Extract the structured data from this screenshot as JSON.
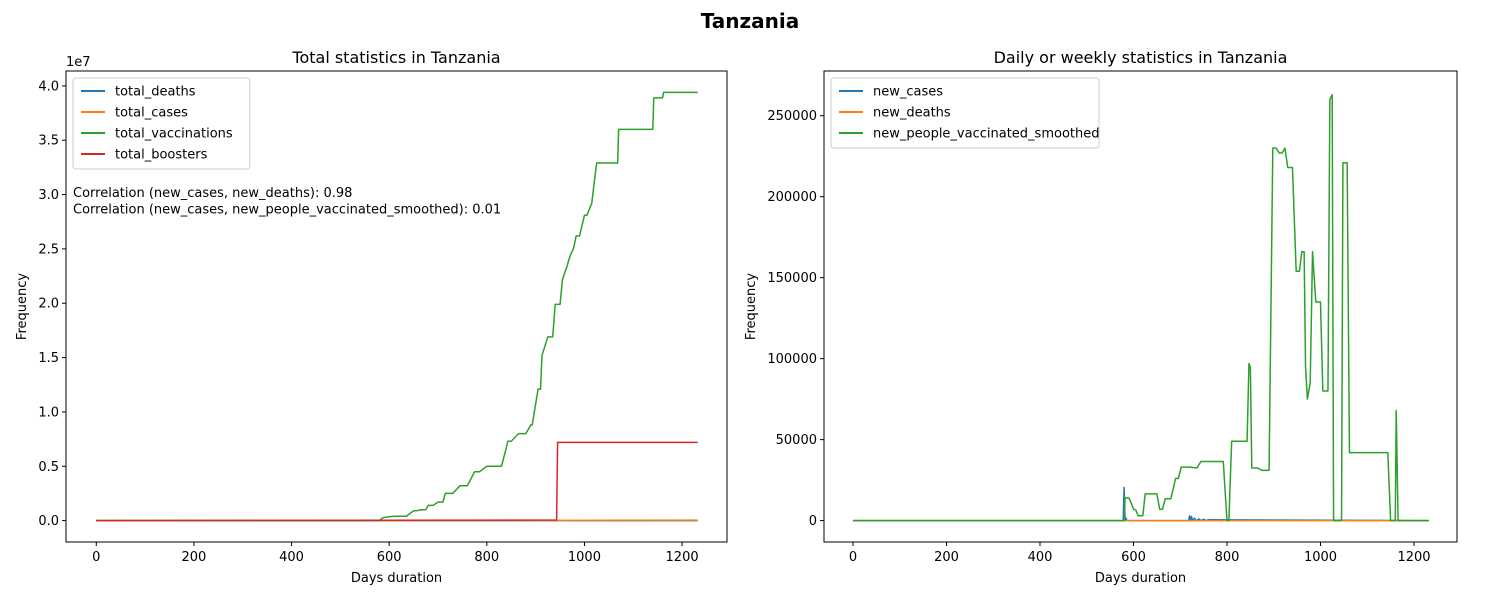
{
  "figure": {
    "title": "Tanzania"
  },
  "chart_data": [
    {
      "type": "line",
      "title": "Total statistics in Tanzania",
      "xlabel": "Days duration",
      "ylabel": "Frequency",
      "y_scale_label": "1e7",
      "xlim": [
        -62,
        1292
      ],
      "ylim": [
        -1970000,
        41370000
      ],
      "xticks": [
        0,
        200,
        400,
        600,
        800,
        1000,
        1200
      ],
      "xtick_labels": [
        "0",
        "200",
        "400",
        "600",
        "800",
        "1000",
        "1200"
      ],
      "yticks": [
        0,
        5000000,
        10000000,
        15000000,
        20000000,
        25000000,
        30000000,
        35000000,
        40000000
      ],
      "ytick_labels": [
        "0.0",
        "0.5",
        "1.0",
        "1.5",
        "2.0",
        "2.5",
        "3.0",
        "3.5",
        "4.0"
      ],
      "legend_position": "top-left",
      "annotations": [
        "Correlation (new_cases, new_deaths): 0.98",
        "Correlation (new_cases, new_people_vaccinated_smoothed): 0.01"
      ],
      "series": [
        {
          "name": "total_deaths",
          "color": "#1f77b4",
          "x": [
            0,
            580,
            1232
          ],
          "y": [
            0,
            21,
            846
          ]
        },
        {
          "name": "total_cases",
          "color": "#ff7f0e",
          "x": [
            0,
            580,
            720,
            1232
          ],
          "y": [
            0,
            509,
            5000,
            43000
          ]
        },
        {
          "name": "total_vaccinations",
          "color": "#2ca02c",
          "x": [
            0,
            580,
            585,
            590,
            600,
            610,
            620,
            635,
            650,
            655,
            665,
            675,
            680,
            690,
            700,
            710,
            715,
            730,
            745,
            750,
            760,
            775,
            785,
            800,
            805,
            830,
            840,
            843,
            850,
            865,
            880,
            890,
            893,
            905,
            910,
            913,
            925,
            935,
            940,
            950,
            955,
            965,
            968,
            972,
            978,
            983,
            990,
            1000,
            1005,
            1015,
            1020,
            1025,
            1035,
            1045,
            1068,
            1070,
            1100,
            1140,
            1142,
            1160,
            1162,
            1232
          ],
          "y": [
            0,
            0,
            200000,
            300000,
            350000,
            400000,
            400000,
            400000,
            900000,
            900000,
            1000000,
            1000000,
            1400000,
            1400000,
            1700000,
            1700000,
            2500000,
            2500000,
            3200000,
            3200000,
            3200000,
            4500000,
            4500000,
            5000000,
            5000000,
            5000000,
            6700000,
            7300000,
            7300000,
            8000000,
            8000000,
            8800000,
            8800000,
            12100000,
            12100000,
            15200000,
            16900000,
            16900000,
            19900000,
            19900000,
            22200000,
            23500000,
            24000000,
            24500000,
            25100000,
            26200000,
            26200000,
            28100000,
            28100000,
            29200000,
            31100000,
            32900000,
            32900000,
            32900000,
            32900000,
            36000000,
            36000000,
            36000000,
            38900000,
            38900000,
            39400000,
            39400000
          ]
        },
        {
          "name": "total_boosters",
          "color": "#d62728",
          "x": [
            0,
            943,
            945,
            1232
          ],
          "y": [
            0,
            50000,
            7200000,
            7200000
          ]
        }
      ]
    },
    {
      "type": "line",
      "title": "Daily or weekly statistics in Tanzania",
      "xlabel": "Days duration",
      "ylabel": "Frequency",
      "xlim": [
        -62,
        1292
      ],
      "ylim": [
        -13220,
        277620
      ],
      "xticks": [
        0,
        200,
        400,
        600,
        800,
        1000,
        1200
      ],
      "xtick_labels": [
        "0",
        "200",
        "400",
        "600",
        "800",
        "1000",
        "1200"
      ],
      "yticks": [
        0,
        50000,
        100000,
        150000,
        200000,
        250000
      ],
      "ytick_labels": [
        "0",
        "50000",
        "100000",
        "150000",
        "200000",
        "250000"
      ],
      "legend_position": "top-left",
      "series": [
        {
          "name": "new_cases",
          "color": "#1f77b4",
          "x": [
            0,
            578,
            580,
            582,
            584,
            586,
            718,
            720,
            722,
            724,
            726,
            730,
            735,
            740,
            745,
            750,
            755,
            760,
            1232
          ],
          "y": [
            0,
            0,
            20500,
            0,
            1500,
            0,
            0,
            3000,
            0,
            2500,
            0,
            1500,
            0,
            1000,
            0,
            800,
            0,
            500,
            0
          ]
        },
        {
          "name": "new_deaths",
          "color": "#ff7f0e",
          "x": [
            0,
            1232
          ],
          "y": [
            0,
            0
          ]
        },
        {
          "name": "new_people_vaccinated_smoothed",
          "color": "#2ca02c",
          "x": [
            0,
            580,
            582,
            585,
            590,
            595,
            600,
            605,
            610,
            620,
            625,
            632,
            636,
            640,
            650,
            656,
            662,
            668,
            675,
            680,
            690,
            696,
            702,
            710,
            720,
            736,
            744,
            752,
            760,
            770,
            782,
            792,
            800,
            804,
            810,
            825,
            835,
            843,
            847,
            850,
            853,
            857,
            865,
            875,
            880,
            890,
            898,
            901,
            905,
            912,
            918,
            924,
            930,
            940,
            948,
            955,
            960,
            965,
            968,
            972,
            978,
            983,
            990,
            996,
            1000,
            1005,
            1010,
            1016,
            1020,
            1025,
            1028,
            1032,
            1035,
            1037,
            1040,
            1045,
            1048,
            1052,
            1057,
            1062,
            1068,
            1072,
            1076,
            1100,
            1140,
            1144,
            1150,
            1155,
            1160,
            1162,
            1166,
            1232
          ],
          "y": [
            0,
            0,
            14000,
            14000,
            14000,
            11000,
            7000,
            6500,
            3000,
            3000,
            16500,
            16500,
            16500,
            16500,
            16500,
            7000,
            7000,
            13500,
            13500,
            13500,
            26000,
            26000,
            33000,
            33000,
            33000,
            32500,
            36500,
            36500,
            36500,
            36500,
            36500,
            36500,
            0,
            0,
            49000,
            49000,
            49000,
            49000,
            97000,
            95000,
            32500,
            32500,
            32500,
            31000,
            31000,
            31000,
            230000,
            230000,
            230000,
            227000,
            227000,
            230000,
            218000,
            218000,
            154000,
            154000,
            166000,
            166000,
            95000,
            75000,
            85000,
            166000,
            135000,
            135000,
            135000,
            80000,
            80000,
            80000,
            260000,
            263000,
            0,
            0,
            0,
            0,
            0,
            0,
            221000,
            221000,
            221000,
            42000,
            42000,
            42000,
            42000,
            42000,
            42000,
            42000,
            0,
            0,
            0,
            68000,
            0,
            0
          ]
        }
      ]
    }
  ]
}
